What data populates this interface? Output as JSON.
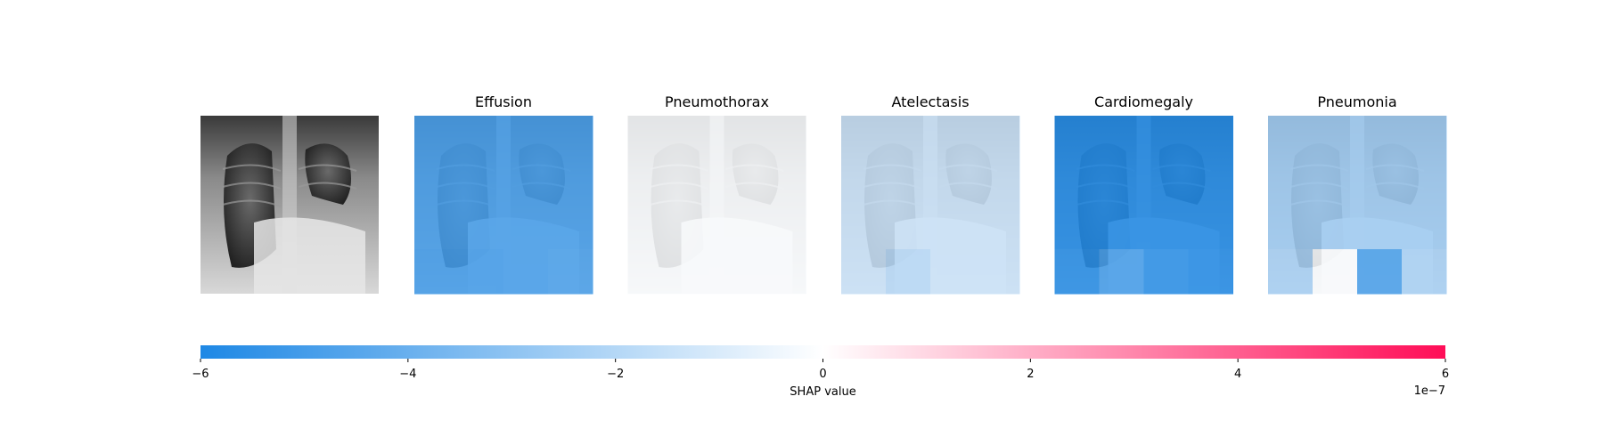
{
  "chart_data": {
    "type": "heatmap",
    "original_image": "chest-xray",
    "panels": [
      {
        "title": "Effusion",
        "base": -4.9e-07,
        "cells": [
          [
            -4.9e-07,
            -4.9e-07,
            -4.9e-07,
            -4.9e-07
          ],
          [
            -4.9e-07,
            -4.9e-07,
            -4.9e-07,
            -4.9e-07
          ],
          [
            -4.9e-07,
            -4.9e-07,
            -4.9e-07,
            -4.9e-07
          ],
          [
            -5e-07,
            -5e-07,
            -4.9e-07,
            -4.8e-07
          ]
        ]
      },
      {
        "title": "Pneumothorax",
        "base": -1e-08,
        "cells": [
          [
            -1e-08,
            -1e-08,
            -1e-08,
            -1e-08
          ],
          [
            -1e-08,
            -1e-08,
            -1e-08,
            -1e-08
          ],
          [
            -1e-08,
            -1e-08,
            -1e-08,
            -1e-08
          ],
          [
            -1e-08,
            -1e-08,
            -1e-08,
            -1e-08
          ]
        ]
      },
      {
        "title": "Atelectasis",
        "base": -1.4e-07,
        "cells": [
          [
            -1.4e-07,
            -1.4e-07,
            -1.4e-07,
            -1.4e-07
          ],
          [
            -1.4e-07,
            -1.4e-07,
            -1.4e-07,
            -1.4e-07
          ],
          [
            -1.4e-07,
            -1.4e-07,
            -1.4e-07,
            -1.4e-07
          ],
          [
            -1.4e-07,
            -1.9e-07,
            -1.4e-07,
            -1.4e-07
          ]
        ]
      },
      {
        "title": "Cardiomegaly",
        "base": -5.9e-07,
        "cells": [
          [
            -5.9e-07,
            -5.9e-07,
            -5.9e-07,
            -5.9e-07
          ],
          [
            -5.9e-07,
            -5.9e-07,
            -5.9e-07,
            -5.9e-07
          ],
          [
            -5.9e-07,
            -5.9e-07,
            -5.9e-07,
            -5.9e-07
          ],
          [
            -5.7e-07,
            -4.9e-07,
            -5.6e-07,
            -5.8e-07
          ]
        ]
      },
      {
        "title": "Pneumonia",
        "base": -2.5e-07,
        "cells": [
          [
            -2.5e-07,
            -2.5e-07,
            -2.5e-07,
            -2.5e-07
          ],
          [
            -2.5e-07,
            -2.5e-07,
            -2.5e-07,
            -2.5e-07
          ],
          [
            -2.5e-07,
            -2.5e-07,
            -2.5e-07,
            -2.5e-07
          ],
          [
            -2.3e-07,
            -1e-08,
            -4.8e-07,
            -2.3e-07
          ]
        ]
      }
    ],
    "colorbar": {
      "min": -6e-07,
      "max": 6e-07,
      "ticks": [
        -6,
        -4,
        -2,
        0,
        2,
        4,
        6
      ],
      "tick_labels": [
        "−6",
        "−4",
        "−2",
        "0",
        "2",
        "4",
        "6"
      ],
      "label": "SHAP value",
      "offset_label": "1e−7",
      "colors": {
        "negative": "#1E88E5",
        "zero": "#FFFFFF",
        "positive": "#FF0D57"
      }
    }
  }
}
